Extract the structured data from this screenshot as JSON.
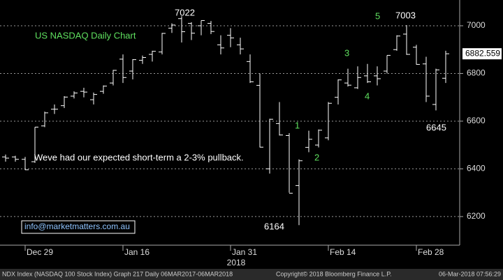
{
  "chart_data": {
    "type": "ohlc",
    "title": "US NASDAQ Daily Chart",
    "categories": [
      null,
      null,
      "Dec 29",
      null,
      null,
      null,
      null,
      null,
      null,
      null,
      null,
      null,
      "Jan 16",
      null,
      null,
      null,
      null,
      null,
      null,
      null,
      null,
      null,
      null,
      "Jan 31",
      null,
      null,
      null,
      null,
      null,
      null,
      null,
      null,
      null,
      "Feb 14",
      null,
      null,
      null,
      null,
      null,
      null,
      null,
      null,
      "Feb 28",
      null,
      null,
      null
    ],
    "x_axis_label": "2018",
    "open": [
      6450,
      6450,
      6440,
      6430,
      6580,
      6650,
      6665,
      6705,
      6725,
      6690,
      6725,
      6760,
      6860,
      6810,
      6855,
      6880,
      6890,
      6990,
      7030,
      7010,
      7000,
      7010,
      6920,
      6960,
      6920,
      6850,
      6750,
      6400,
      6590,
      6540,
      6330,
      6490,
      6500,
      6530,
      6700,
      6760,
      6740,
      6790,
      6790,
      6810,
      6900,
      6965,
      6910,
      6840,
      6670,
      6780
    ],
    "high": [
      6460,
      6455,
      6450,
      6575,
      6640,
      6670,
      6705,
      6725,
      6740,
      6720,
      6750,
      6815,
      6880,
      6860,
      6875,
      6895,
      6970,
      7010,
      7040,
      7015,
      7022,
      7020,
      6960,
      6990,
      6950,
      6880,
      6800,
      6610,
      6680,
      6550,
      6440,
      6560,
      6565,
      6680,
      6775,
      6820,
      6830,
      6840,
      6830,
      6876,
      6960,
      7003,
      6920,
      6870,
      6820,
      6895
    ],
    "low": [
      6430,
      6430,
      6395,
      6425,
      6575,
      6630,
      6655,
      6695,
      6700,
      6670,
      6715,
      6750,
      6760,
      6775,
      6840,
      6850,
      6880,
      6970,
      6930,
      6940,
      6960,
      6965,
      6880,
      6910,
      6880,
      6760,
      6490,
      6380,
      6540,
      6300,
      6164,
      6470,
      6490,
      6520,
      6670,
      6745,
      6735,
      6760,
      6750,
      6800,
      6895,
      6878,
      6837,
      6680,
      6645,
      6760
    ],
    "close": [
      6445,
      6440,
      6396,
      6575,
      6635,
      6650,
      6701,
      6718,
      6722,
      6712,
      6747,
      6813,
      6783,
      6858,
      6867,
      6893,
      6968,
      7003,
      6975,
      6969,
      7022,
      6976,
      6907,
      6949,
      6903,
      6765,
      6491,
      6608,
      6542,
      6298,
      6434,
      6524,
      6562,
      6675,
      6773,
      6751,
      6783,
      6765,
      6778,
      6876,
      6957,
      6880,
      6838,
      6705,
      6815,
      6882.559
    ],
    "color": "#ffffff",
    "ylim": [
      6080,
      7108
    ],
    "yticks": [
      6200,
      6400,
      6600,
      6800,
      7000
    ],
    "grid": true,
    "annotations": [
      "7022",
      "7003",
      "6164",
      "6645",
      "1",
      "2",
      "3",
      "4",
      "5",
      "Weve had our expected short-term a 2-3% pullback.",
      "info@marketmatters.com.au"
    ]
  },
  "footer": {
    "left": "NDX Index (NASDAQ 100 Stock Index) Graph 217  Daily 06MAR2017-06MAR2018",
    "center": "Copyright© 2018 Bloomberg Finance L.P.",
    "right": "06-Mar-2018 07:56:29"
  }
}
